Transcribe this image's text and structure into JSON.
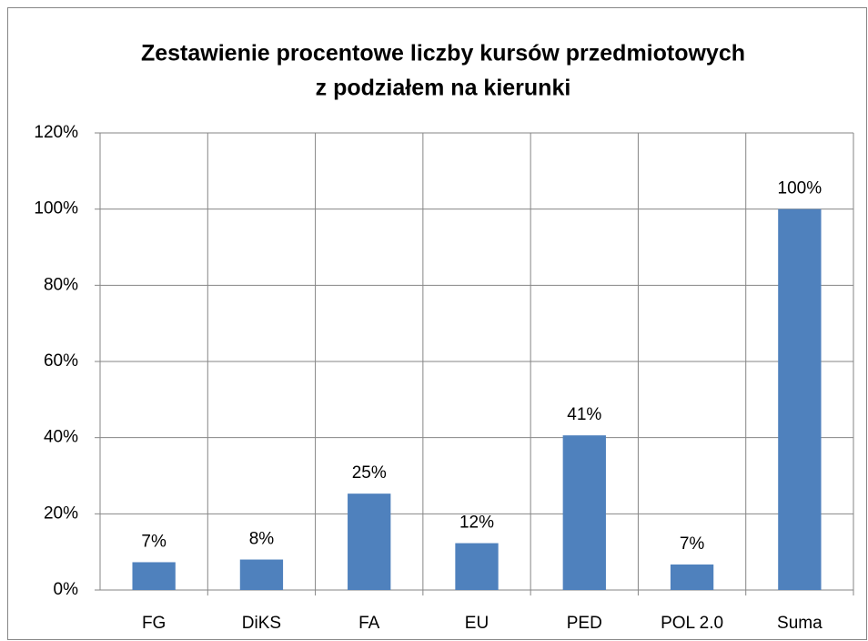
{
  "chart_data": {
    "type": "bar",
    "title": [
      "Zestawienie procentowe liczby kursów przedmiotowych",
      "z podziałem na kierunki"
    ],
    "categories": [
      "FG",
      "DiKS",
      "FA",
      "EU",
      "PED",
      "POL 2.0",
      "Suma"
    ],
    "values": [
      7.3,
      8,
      25.3,
      12.3,
      40.6,
      6.7,
      100
    ],
    "value_labels": [
      "7%",
      "8%",
      "25%",
      "12%",
      "41%",
      "7%",
      "100%"
    ],
    "color": "#4f81bd",
    "ylim": [
      0,
      120
    ],
    "yticks": [
      {
        "value": 0,
        "label": "0%"
      },
      {
        "value": 20,
        "label": "20%"
      },
      {
        "value": 40,
        "label": "40%"
      },
      {
        "value": 60,
        "label": "60%"
      },
      {
        "value": 80,
        "label": "80%"
      },
      {
        "value": 100,
        "label": "100%"
      },
      {
        "value": 120,
        "label": "120%"
      }
    ],
    "grid": true
  }
}
